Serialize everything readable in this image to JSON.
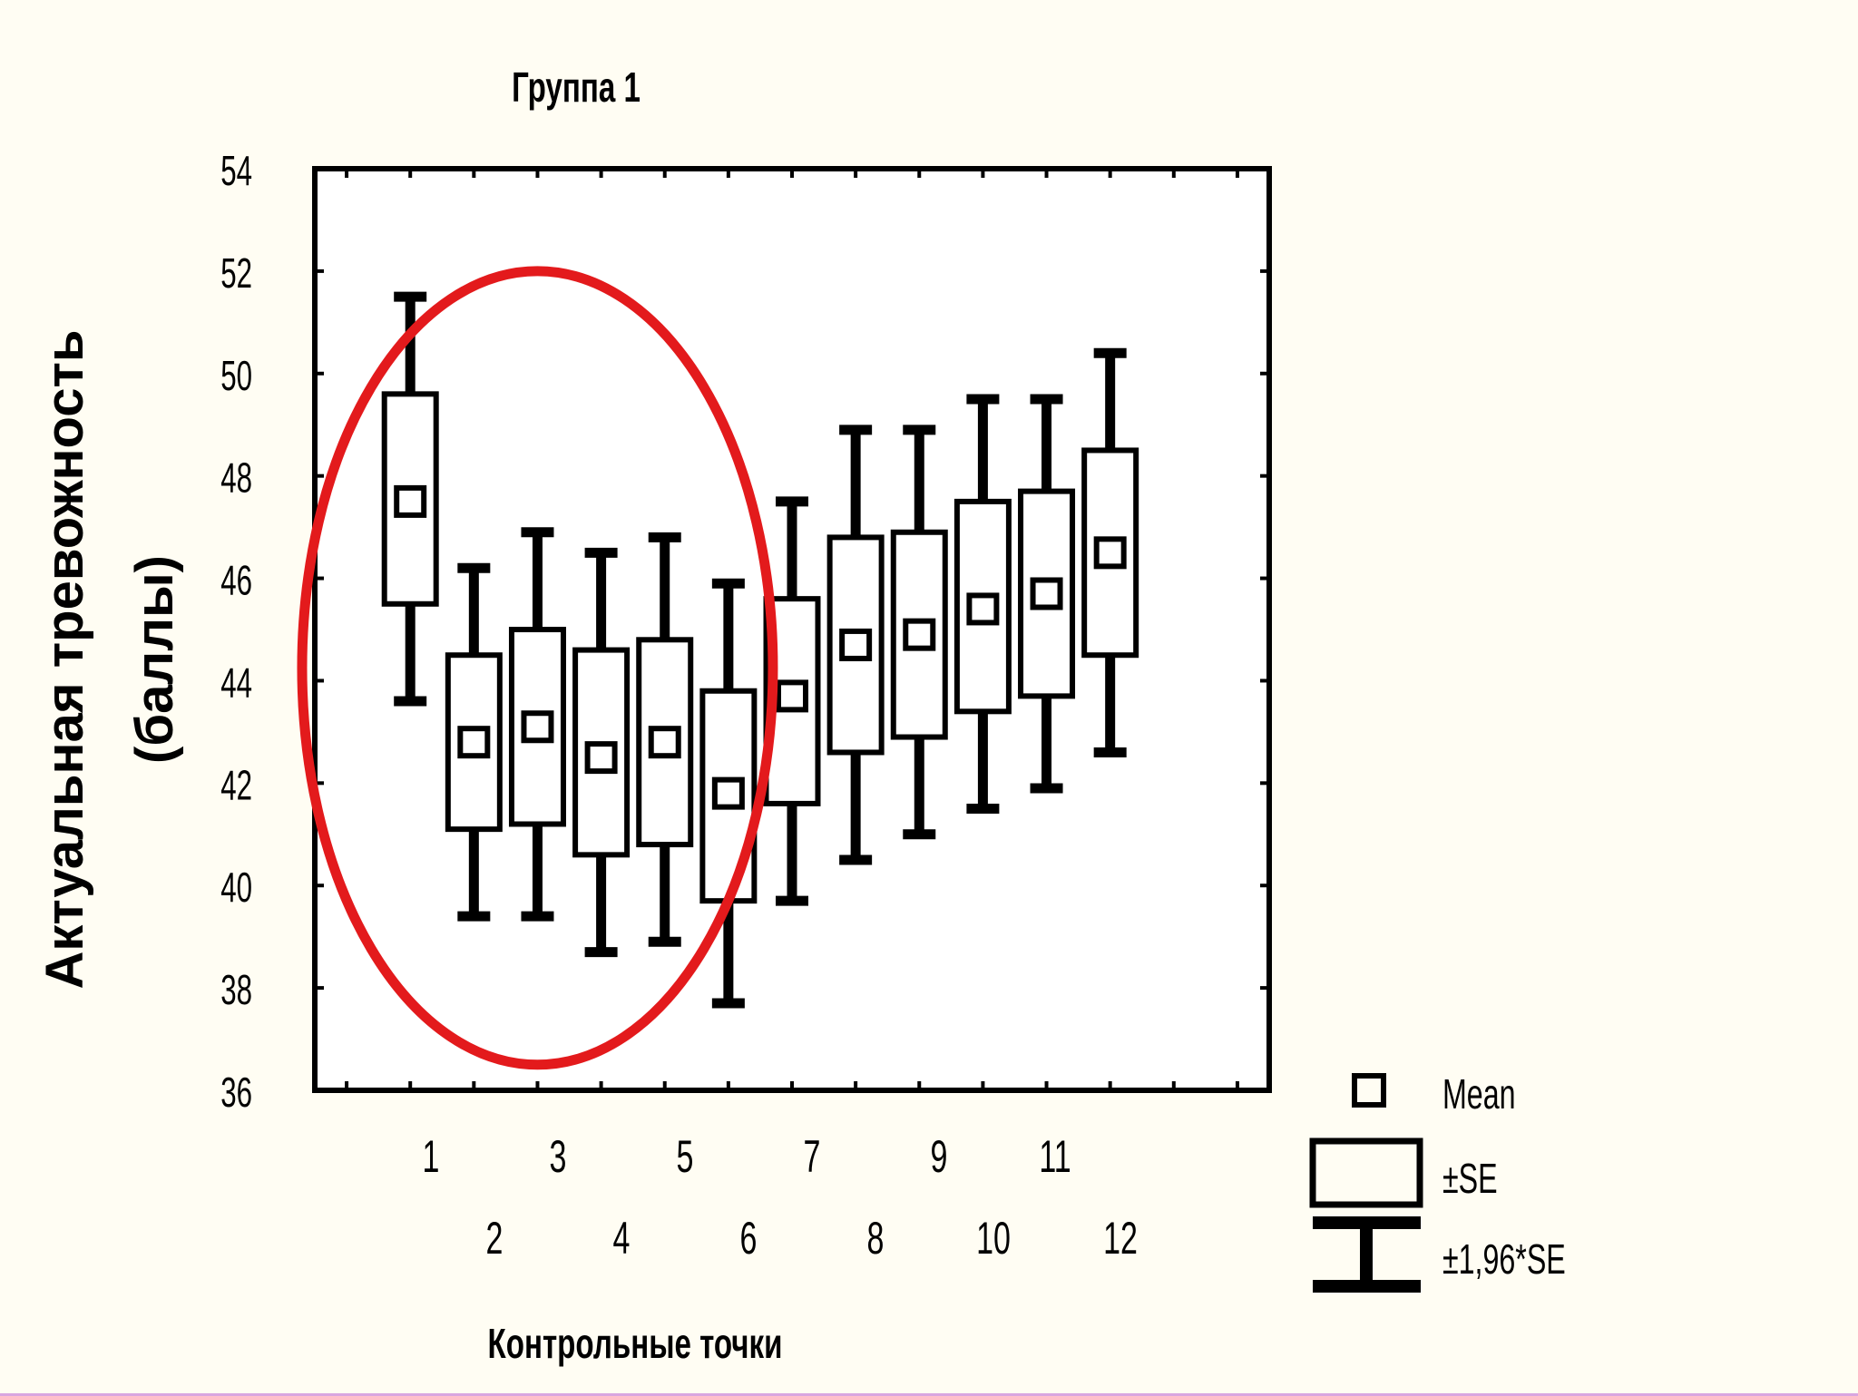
{
  "chart_data": {
    "type": "box",
    "title": "Группа 1",
    "xlabel": "Контрольные точки",
    "ylabel_line1": "Актуальная тревожность",
    "ylabel_line2": "(баллы)",
    "ylim": [
      36,
      54
    ],
    "xlim": [
      -0.5,
      14.5
    ],
    "yticks": [
      "36",
      "38",
      "40",
      "42",
      "44",
      "46",
      "48",
      "50",
      "52",
      "54"
    ],
    "grid": true,
    "legend_position": "bottom-right",
    "legend": {
      "mean": "Mean",
      "se": "±SE",
      "ci": "±1,96*SE"
    },
    "categories": [
      "1",
      "2",
      "3",
      "4",
      "5",
      "6",
      "7",
      "8",
      "9",
      "10",
      "11",
      "12"
    ],
    "mean": [
      47.5,
      42.8,
      43.1,
      42.5,
      42.8,
      41.8,
      43.7,
      44.7,
      44.9,
      45.4,
      45.7,
      46.5
    ],
    "se_low": [
      45.5,
      41.1,
      41.2,
      40.6,
      40.8,
      39.7,
      41.6,
      42.6,
      42.9,
      43.4,
      43.7,
      44.5
    ],
    "se_high": [
      49.6,
      44.5,
      45.0,
      44.6,
      44.8,
      43.8,
      45.6,
      46.8,
      46.9,
      47.5,
      47.7,
      48.5
    ],
    "ci_low": [
      43.6,
      39.4,
      39.4,
      38.7,
      38.9,
      37.7,
      39.7,
      40.5,
      41.0,
      41.5,
      41.9,
      42.6
    ],
    "ci_high": [
      51.5,
      46.2,
      46.9,
      46.5,
      46.8,
      45.9,
      47.5,
      48.9,
      48.9,
      49.5,
      49.5,
      50.4
    ],
    "highlight_ellipse": {
      "center_x": 3,
      "center_y": 44.25,
      "rx": 3.7,
      "ry": 7.75,
      "color": "#E31A1C"
    }
  }
}
